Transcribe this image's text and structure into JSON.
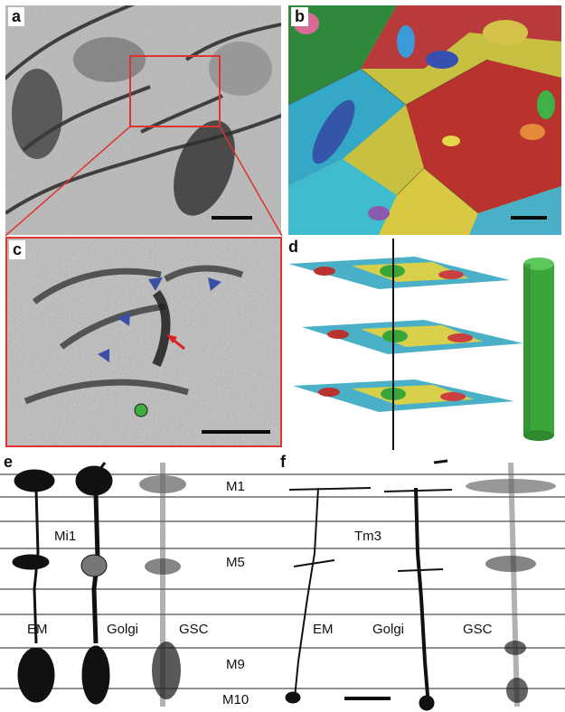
{
  "panels": {
    "a": {
      "label": "a"
    },
    "b": {
      "label": "b"
    },
    "c": {
      "label": "c"
    },
    "d": {
      "label": "d"
    },
    "e": {
      "label": "e",
      "cell": "Mi1",
      "methods": [
        "EM",
        "Golgi",
        "GSC"
      ]
    },
    "f": {
      "label": "f",
      "cell": "Tm3",
      "methods": [
        "EM",
        "Golgi",
        "GSC"
      ]
    }
  },
  "layers": {
    "m1": "M1",
    "m5": "M5",
    "m9": "M9",
    "m10": "M10"
  },
  "colors": {
    "highlight_box": "#e0322f",
    "arrowhead": "#3b4fa8",
    "arrow": "#e02020",
    "dot": "#3fae3f",
    "column": "#3aa63a",
    "scale_bar": "#0c0c0c"
  },
  "icons": {
    "arrowhead": "blue-triangle-arrowhead-icon",
    "arrow": "red-arrow-icon",
    "dot": "green-circle-icon"
  }
}
